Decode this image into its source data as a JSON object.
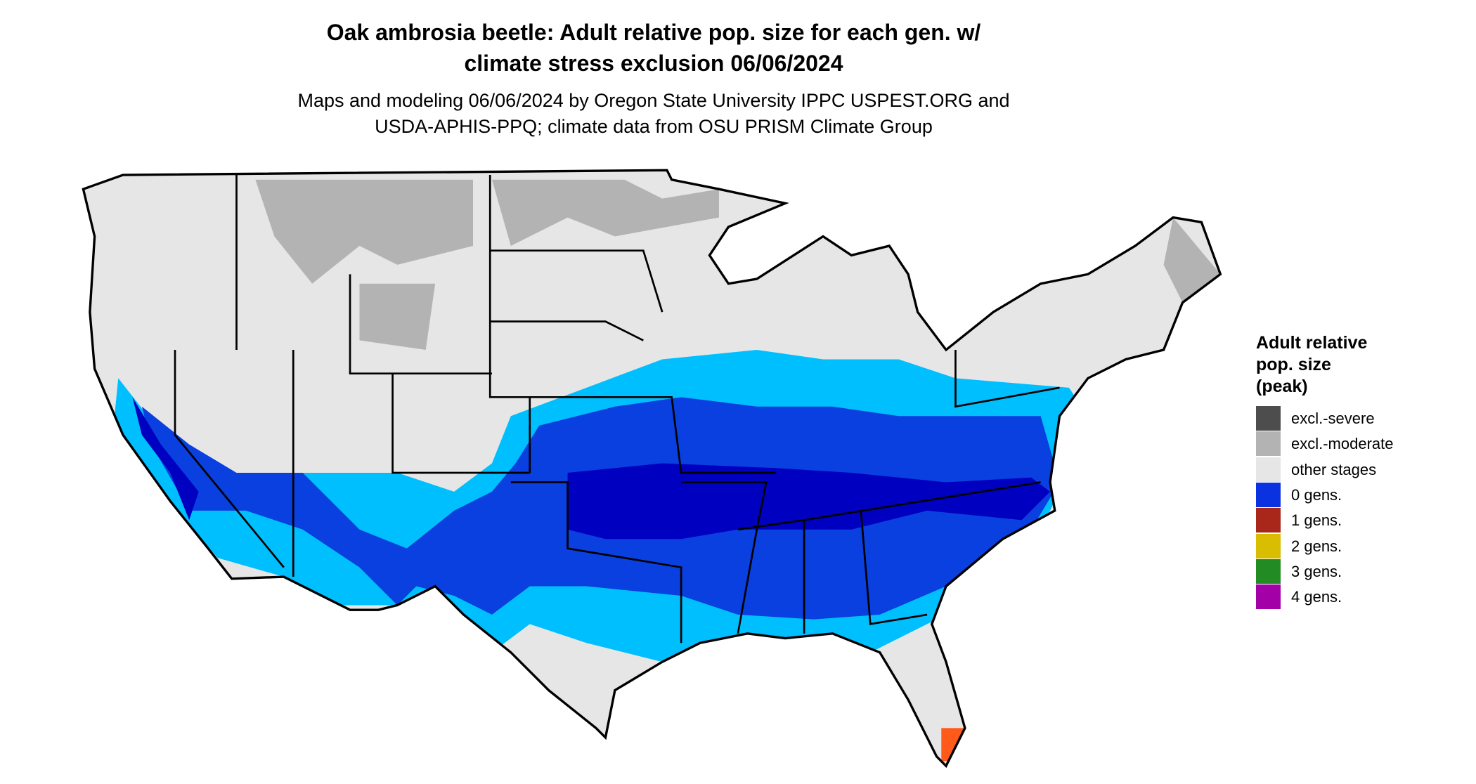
{
  "header": {
    "title_lines": [
      "Oak ambrosia beetle: Adult relative pop. size for each gen. w/",
      "climate stress exclusion 06/06/2024"
    ],
    "subtitle_lines": [
      "Maps and modeling 06/06/2024 by Oregon State University IPPC USPEST.ORG and",
      "USDA-APHIS-PPQ; climate data from OSU PRISM Climate Group"
    ]
  },
  "legend": {
    "title_lines": [
      "Adult relative",
      "pop. size",
      "(peak)"
    ],
    "items": [
      {
        "label": "excl.-severe",
        "color": "#4d4d4d"
      },
      {
        "label": "excl.-moderate",
        "color": "#b3b3b3"
      },
      {
        "label": "other stages",
        "color": "#e6e6e6"
      },
      {
        "label": "0 gens.",
        "color": "#0a32e0"
      },
      {
        "label": "1 gens.",
        "color": "#a8261a"
      },
      {
        "label": "2 gens.",
        "color": "#d9bd00"
      },
      {
        "label": "3 gens.",
        "color": "#238b23"
      },
      {
        "label": "4 gens.",
        "color": "#a300a8"
      }
    ]
  }
}
